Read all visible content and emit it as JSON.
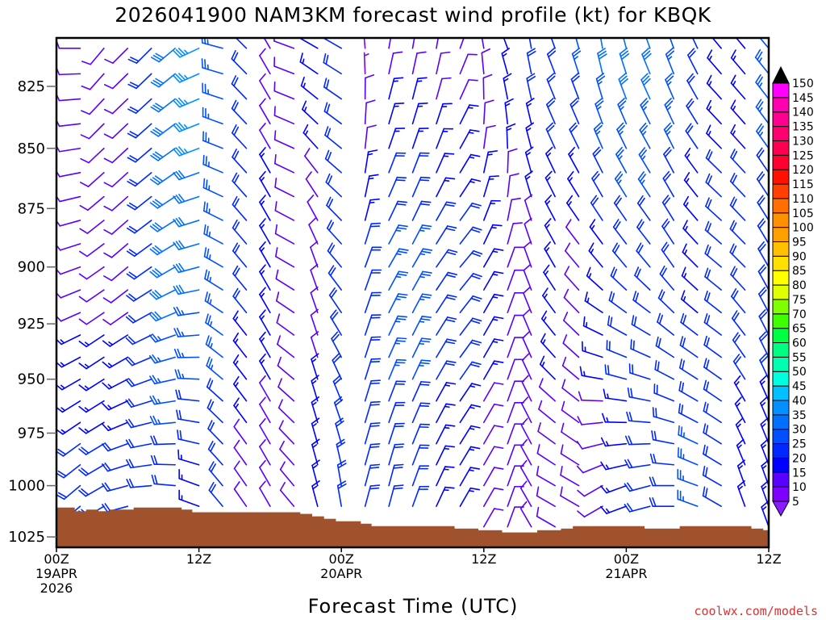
{
  "chart_data": {
    "type": "wind-barb-time-height",
    "title": "2026041900 NAM3KM forecast wind profile (kt) for KBQK",
    "xlabel": "Forecast Time (UTC)",
    "credit": "coolwx.com/models",
    "x_range_hours": [
      0,
      60
    ],
    "x_ticks": [
      {
        "hour": 0,
        "lines": [
          "00Z",
          "19APR",
          "2026"
        ]
      },
      {
        "hour": 12,
        "lines": [
          "12Z"
        ]
      },
      {
        "hour": 24,
        "lines": [
          "00Z",
          "20APR"
        ]
      },
      {
        "hour": 36,
        "lines": [
          "12Z"
        ]
      },
      {
        "hour": 48,
        "lines": [
          "00Z",
          "21APR"
        ]
      },
      {
        "hour": 60,
        "lines": [
          "12Z"
        ]
      }
    ],
    "y_range_hpa": [
      805,
      1030
    ],
    "y_ticks": [
      "825",
      "850",
      "875",
      "900",
      "925",
      "950",
      "975",
      "1000",
      "1025"
    ],
    "levels_hpa": [
      810,
      820,
      830,
      840,
      850,
      860,
      870,
      880,
      890,
      900,
      910,
      920,
      930,
      940,
      950,
      960,
      970,
      980,
      990,
      1000,
      1010,
      1020
    ],
    "profile_anchors_hpa": [
      810,
      900,
      1000
    ],
    "wind_columns": [
      {
        "hour": 2,
        "top": [
          270,
          10
        ],
        "mid": [
          250,
          10
        ],
        "bot": [
          230,
          20
        ]
      },
      {
        "hour": 4,
        "top": [
          220,
          10
        ],
        "mid": [
          235,
          10
        ],
        "bot": [
          240,
          20
        ]
      },
      {
        "hour": 6,
        "top": [
          225,
          10
        ],
        "mid": [
          230,
          10
        ],
        "bot": [
          255,
          20
        ]
      },
      {
        "hour": 8,
        "top": [
          225,
          20
        ],
        "mid": [
          235,
          20
        ],
        "bot": [
          265,
          20
        ]
      },
      {
        "hour": 10,
        "top": [
          230,
          30
        ],
        "mid": [
          240,
          30
        ],
        "bot": [
          275,
          20
        ]
      },
      {
        "hour": 12,
        "top": [
          245,
          35
        ],
        "mid": [
          255,
          30
        ],
        "bot": [
          290,
          15
        ]
      },
      {
        "hour": 14,
        "top": [
          285,
          25
        ],
        "mid": [
          300,
          25
        ],
        "bot": [
          320,
          20
        ]
      },
      {
        "hour": 16,
        "top": [
          315,
          20
        ],
        "mid": [
          320,
          20
        ],
        "bot": [
          325,
          10
        ]
      },
      {
        "hour": 18,
        "top": [
          330,
          10
        ],
        "mid": [
          330,
          15
        ],
        "bot": [
          330,
          10
        ]
      },
      {
        "hour": 20,
        "top": [
          290,
          10
        ],
        "mid": [
          300,
          10
        ],
        "bot": [
          320,
          10
        ]
      },
      {
        "hour": 22,
        "top": [
          300,
          15
        ],
        "mid": [
          340,
          10
        ],
        "bot": [
          345,
          15
        ]
      },
      {
        "hour": 24,
        "top": [
          300,
          20
        ],
        "mid": [
          320,
          20
        ],
        "bot": [
          350,
          20
        ]
      },
      {
        "hour": 26,
        "top": [
          355,
          5
        ],
        "mid": [
          20,
          20
        ],
        "bot": [
          15,
          20
        ]
      },
      {
        "hour": 28,
        "top": [
          10,
          10
        ],
        "mid": [
          30,
          25
        ],
        "bot": [
          15,
          20
        ]
      },
      {
        "hour": 30,
        "top": [
          10,
          10
        ],
        "mid": [
          30,
          25
        ],
        "bot": [
          20,
          20
        ]
      },
      {
        "hour": 32,
        "top": [
          10,
          10
        ],
        "mid": [
          35,
          20
        ],
        "bot": [
          25,
          15
        ]
      },
      {
        "hour": 34,
        "top": [
          20,
          10
        ],
        "mid": [
          40,
          20
        ],
        "bot": [
          30,
          15
        ]
      },
      {
        "hour": 36,
        "top": [
          350,
          10
        ],
        "mid": [
          30,
          15
        ],
        "bot": [
          30,
          10
        ]
      },
      {
        "hour": 38,
        "top": [
          340,
          15
        ],
        "mid": [
          20,
          10
        ],
        "bot": [
          20,
          10
        ]
      },
      {
        "hour": 40,
        "top": [
          350,
          20
        ],
        "mid": [
          340,
          10
        ],
        "bot": [
          330,
          10
        ]
      },
      {
        "hour": 42,
        "top": [
          340,
          20
        ],
        "mid": [
          330,
          15
        ],
        "bot": [
          300,
          10
        ]
      },
      {
        "hour": 44,
        "top": [
          345,
          25
        ],
        "mid": [
          320,
          10
        ],
        "bot": [
          300,
          10
        ]
      },
      {
        "hour": 46,
        "top": [
          350,
          30
        ],
        "mid": [
          320,
          15
        ],
        "bot": [
          240,
          10
        ]
      },
      {
        "hour": 48,
        "top": [
          345,
          30
        ],
        "mid": [
          320,
          20
        ],
        "bot": [
          250,
          15
        ]
      },
      {
        "hour": 50,
        "top": [
          340,
          30
        ],
        "mid": [
          320,
          20
        ],
        "bot": [
          255,
          20
        ]
      },
      {
        "hour": 52,
        "top": [
          340,
          25
        ],
        "mid": [
          325,
          20
        ],
        "bot": [
          270,
          20
        ]
      },
      {
        "hour": 54,
        "top": [
          335,
          20
        ],
        "mid": [
          315,
          15
        ],
        "bot": [
          290,
          25
        ]
      },
      {
        "hour": 56,
        "top": [
          320,
          15
        ],
        "mid": [
          310,
          20
        ],
        "bot": [
          300,
          20
        ]
      },
      {
        "hour": 58,
        "top": [
          320,
          15
        ],
        "mid": [
          315,
          20
        ],
        "bot": [
          340,
          15
        ]
      },
      {
        "hour": 60,
        "top": [
          320,
          25
        ],
        "mid": [
          330,
          20
        ],
        "bot": [
          340,
          15
        ]
      }
    ],
    "surface_pressure_segments": [
      [
        0,
        1.5,
        1010.6
      ],
      [
        1.5,
        2.5,
        1012.4
      ],
      [
        2.5,
        3.5,
        1011.6
      ],
      [
        3.5,
        4.5,
        1012.4
      ],
      [
        4.5,
        6.5,
        1011.6
      ],
      [
        6.5,
        10.5,
        1010.6
      ],
      [
        10.5,
        11.4,
        1011.6
      ],
      [
        11.4,
        20.5,
        1012.9
      ],
      [
        20.5,
        21.5,
        1013.7
      ],
      [
        21.5,
        22.5,
        1014.9
      ],
      [
        22.5,
        23.5,
        1016.1
      ],
      [
        23.5,
        25.6,
        1017.3
      ],
      [
        25.6,
        26.5,
        1018.5
      ],
      [
        26.5,
        33.5,
        1019.7
      ],
      [
        33.5,
        35.5,
        1020.9
      ],
      [
        35.5,
        37.5,
        1021.7
      ],
      [
        37.5,
        40.5,
        1022.8
      ],
      [
        40.5,
        42.5,
        1021.7
      ],
      [
        42.5,
        43.5,
        1020.9
      ],
      [
        43.5,
        49.5,
        1019.7
      ],
      [
        49.5,
        52.5,
        1020.9
      ],
      [
        52.5,
        58.5,
        1019.7
      ],
      [
        58.5,
        59.5,
        1020.9
      ],
      [
        59.5,
        60,
        1021.7
      ]
    ],
    "terrain_color": "#a0522d",
    "colorbar": {
      "labels": [
        "150",
        "145",
        "140",
        "135",
        "130",
        "125",
        "120",
        "115",
        "110",
        "105",
        "100",
        "95",
        "90",
        "85",
        "80",
        "75",
        "70",
        "65",
        "60",
        "55",
        "50",
        "45",
        "40",
        "35",
        "30",
        "25",
        "20",
        "15",
        "10",
        "5"
      ],
      "over_color": "#000000",
      "under_color": "#8a1cff",
      "colors_low_to_high": [
        "#8000ff",
        "#5a00ff",
        "#0000ff",
        "#0028ff",
        "#0050ff",
        "#0070ff",
        "#0090ff",
        "#00c0ff",
        "#00ffe0",
        "#00ffb0",
        "#00ff80",
        "#00ff40",
        "#40ff00",
        "#80ff00",
        "#e0ff00",
        "#ffff00",
        "#ffe000",
        "#ffc000",
        "#ffa000",
        "#ff9000",
        "#ff7000",
        "#ff4000",
        "#ff1000",
        "#ff0030",
        "#ff0050",
        "#ff0070",
        "#ff0090",
        "#ff00b0",
        "#ff00ff"
      ]
    }
  }
}
